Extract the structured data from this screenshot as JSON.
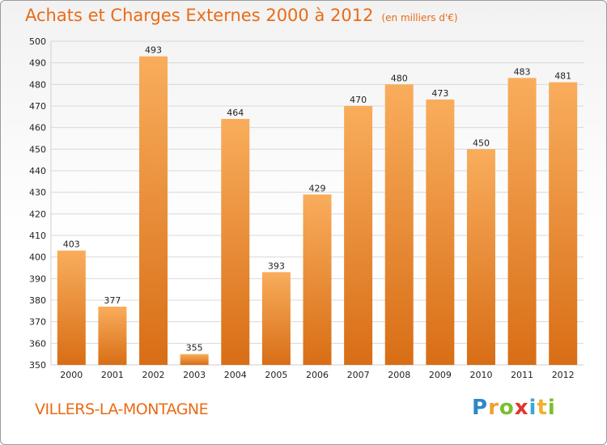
{
  "header": {
    "title": "Achats et Charges Externes 2000 à 2012",
    "unit": "(en milliers d'€)"
  },
  "footer": {
    "town": "VILLERS-LA-MONTAGNE",
    "logo": "Proxiti"
  },
  "colors": {
    "accent": "#ea6b16",
    "bar_light": "#f7a552",
    "bar_dark": "#d9741a"
  },
  "chart_data": {
    "type": "bar",
    "categories": [
      "2000",
      "2001",
      "2002",
      "2003",
      "2004",
      "2005",
      "2006",
      "2007",
      "2008",
      "2009",
      "2010",
      "2011",
      "2012"
    ],
    "values": [
      403,
      377,
      493,
      355,
      464,
      393,
      429,
      470,
      480,
      473,
      450,
      483,
      481
    ],
    "title": "Achats et Charges Externes 2000 à 2012",
    "ylim": [
      350,
      500
    ],
    "yticks": [
      350,
      360,
      370,
      380,
      390,
      400,
      410,
      420,
      430,
      440,
      450,
      460,
      470,
      480,
      490,
      500
    ],
    "grid": true
  }
}
